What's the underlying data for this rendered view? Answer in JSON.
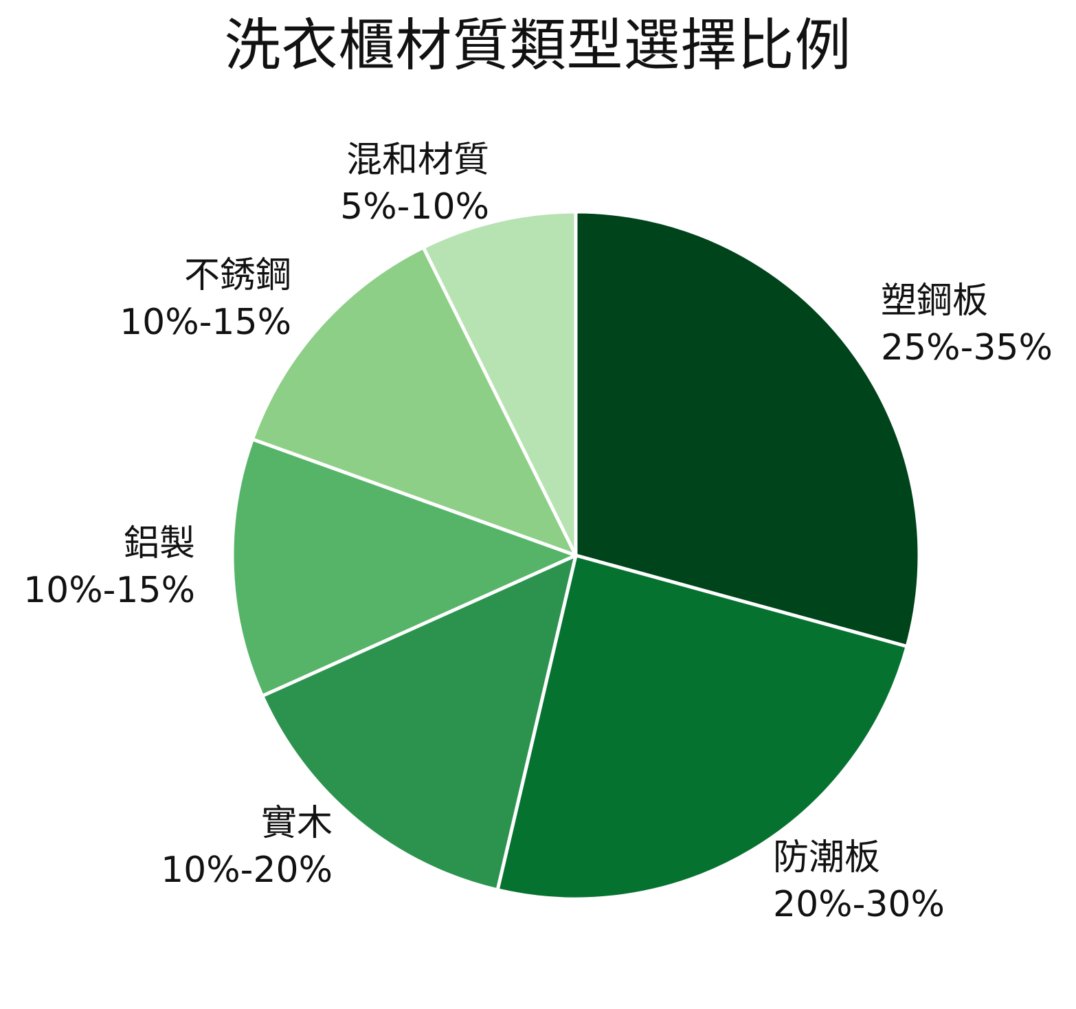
{
  "chart_data": {
    "type": "pie",
    "title": "洗衣櫃材質類型選擇比例",
    "slices": [
      {
        "label": "塑鋼板",
        "range": "25%-35%",
        "value": 30,
        "color": "#00441b"
      },
      {
        "label": "防潮板",
        "range": "20%-30%",
        "value": 25,
        "color": "#067230"
      },
      {
        "label": "實木",
        "range": "10%-20%",
        "value": 15,
        "color": "#2c934e"
      },
      {
        "label": "鋁製",
        "range": "10%-15%",
        "value": 12.5,
        "color": "#56b469"
      },
      {
        "label": "不銹鋼",
        "range": "10%-15%",
        "value": 12.5,
        "color": "#8ecf88"
      },
      {
        "label": "混和材質",
        "range": "5%-10%",
        "value": 7.5,
        "color": "#b7e2b1"
      }
    ],
    "start_angle": "12 o'clock",
    "direction": "clockwise",
    "legend": "none"
  }
}
